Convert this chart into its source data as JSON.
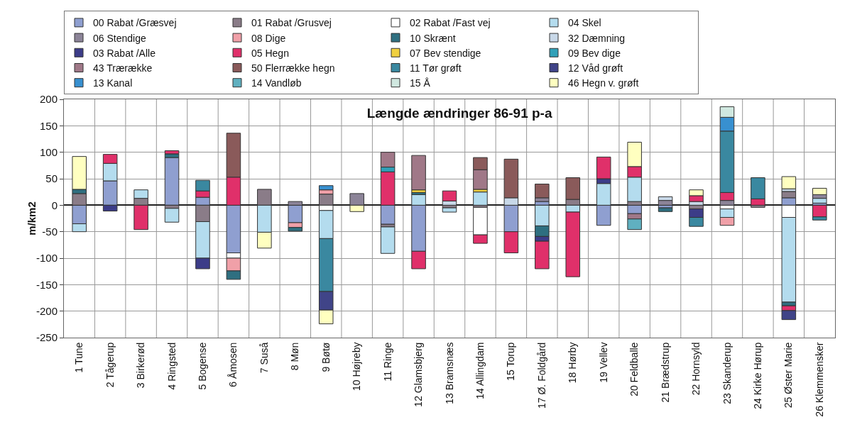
{
  "chart_data": {
    "type": "bar",
    "stacked": true,
    "title": "Længde ændringer 86-91 p-a",
    "ylabel": "m/km2",
    "categories": [
      "1 Tune",
      "2 Tågerup",
      "3 Birkerød",
      "4 Ringsted",
      "5 Bogense",
      "6 Åmosen",
      "7 Suså",
      "8 Møn",
      "9 Bøtø",
      "10 Højreby",
      "11 Ringe",
      "12 Glamsbjerg",
      "13 Bramsnæs",
      "14 Allingdam",
      "15 Torup",
      "17 Ø. Foldgård",
      "18 Hørby",
      "19 Vellev",
      "20 Feldballe",
      "21 Brædstrup",
      "22 Hornsyld",
      "23 Skanderup",
      "24 Kirke Hørup",
      "25 Øster Marie",
      "26 Klemmensker"
    ],
    "ylim": [
      -250,
      200
    ],
    "yticks": [
      -250,
      -200,
      -150,
      -100,
      -50,
      0,
      50,
      100,
      150,
      200
    ],
    "grid": true,
    "legend": "top",
    "series": [
      {
        "name": "00 Rabat /Græsvej",
        "color": "#8f9fd0",
        "values": [
          -35,
          46,
          null,
          90,
          15,
          -90,
          null,
          -33,
          null,
          null,
          -36,
          -87,
          null,
          null,
          -50,
          7,
          null,
          -38,
          -16,
          -5,
          null,
          null,
          null,
          14,
          4
        ]
      },
      {
        "name": "01 Rabat /Grusvej",
        "color": "#8a7c88",
        "values": [
          22,
          null,
          13,
          -6,
          -31,
          null,
          30,
          null,
          21,
          null,
          -5,
          null,
          -5,
          -4,
          null,
          null,
          11,
          null,
          7,
          null,
          -7,
          null,
          -4,
          12,
          null
        ]
      },
      {
        "name": "02 Rabat /Fast vej",
        "color": "#ffffff",
        "values": [
          null,
          null,
          null,
          null,
          null,
          -10,
          null,
          null,
          -10,
          null,
          null,
          null,
          null,
          -52,
          null,
          null,
          null,
          null,
          null,
          null,
          null,
          -7,
          null,
          -23,
          null
        ]
      },
      {
        "name": "04 Skel",
        "color": "#b4dcee",
        "values": [
          -15,
          33,
          16,
          -26,
          -69,
          null,
          -51,
          null,
          -53,
          null,
          -50,
          20,
          -8,
          25,
          null,
          -39,
          -13,
          41,
          46,
          null,
          null,
          -16,
          null,
          -160,
          9
        ]
      },
      {
        "name": "06 Stendige",
        "color": "#8c8498",
        "values": [
          null,
          null,
          null,
          null,
          null,
          null,
          null,
          7,
          null,
          22,
          null,
          null,
          null,
          null,
          null,
          7,
          null,
          null,
          null,
          9,
          null,
          9,
          null,
          null,
          7
        ]
      },
      {
        "name": "08 Dige",
        "color": "#f0a0a8",
        "values": [
          null,
          null,
          null,
          null,
          null,
          -24,
          null,
          -9,
          8,
          null,
          null,
          null,
          null,
          null,
          null,
          null,
          null,
          null,
          null,
          null,
          null,
          -15,
          null,
          null,
          null
        ]
      },
      {
        "name": "10 Skrænt",
        "color": "#2f6f80",
        "values": [
          8,
          null,
          null,
          7,
          null,
          -16,
          null,
          -7,
          null,
          null,
          null,
          4,
          null,
          null,
          null,
          -20,
          null,
          null,
          null,
          -7,
          null,
          null,
          null,
          -7,
          null
        ]
      },
      {
        "name": "32 Dæmning",
        "color": "#c8d8e8",
        "values": [
          null,
          null,
          null,
          null,
          null,
          null,
          null,
          null,
          null,
          null,
          null,
          null,
          8,
          null,
          14,
          null,
          null,
          null,
          null,
          7,
          7,
          null,
          null,
          5,
          null
        ]
      },
      {
        "name": "03 Rabat /Alle",
        "color": "#3c3c88",
        "values": [
          null,
          -11,
          null,
          null,
          -20,
          null,
          null,
          null,
          null,
          null,
          null,
          null,
          null,
          null,
          null,
          -9,
          null,
          9,
          null,
          null,
          -16,
          null,
          null,
          null,
          null
        ]
      },
      {
        "name": "05 Hegn",
        "color": "#e0306a",
        "values": [
          null,
          17,
          -46,
          6,
          12,
          53,
          null,
          null,
          null,
          null,
          63,
          -33,
          19,
          -16,
          -40,
          -52,
          -122,
          41,
          20,
          null,
          11,
          15,
          12,
          -9,
          -22
        ]
      },
      {
        "name": "07 Bev stendige",
        "color": "#f0d040",
        "values": [
          null,
          null,
          null,
          null,
          null,
          null,
          null,
          null,
          null,
          null,
          null,
          5,
          null,
          5,
          null,
          null,
          null,
          null,
          null,
          null,
          null,
          null,
          null,
          null,
          null
        ]
      },
      {
        "name": "09 Bev dige",
        "color": "#30a0b8",
        "values": [
          null,
          null,
          null,
          null,
          null,
          null,
          null,
          null,
          null,
          null,
          9,
          null,
          null,
          null,
          null,
          null,
          null,
          null,
          null,
          null,
          null,
          null,
          null,
          null,
          null
        ]
      },
      {
        "name": "43 Trærække",
        "color": "#a07888",
        "values": [
          null,
          null,
          null,
          null,
          null,
          null,
          null,
          null,
          null,
          null,
          28,
          65,
          null,
          37,
          null,
          null,
          null,
          null,
          -10,
          null,
          null,
          null,
          null,
          null,
          null
        ]
      },
      {
        "name": "50 Flerrække hegn",
        "color": "#8a5a5a",
        "values": [
          null,
          null,
          null,
          null,
          null,
          83,
          null,
          null,
          null,
          null,
          null,
          null,
          null,
          23,
          73,
          26,
          41,
          null,
          null,
          null,
          null,
          null,
          null,
          null,
          null
        ]
      },
      {
        "name": "11 Tør grøft",
        "color": "#3a88a0",
        "values": [
          null,
          null,
          null,
          null,
          20,
          null,
          null,
          null,
          -100,
          null,
          null,
          null,
          null,
          null,
          null,
          null,
          null,
          null,
          null,
          null,
          -17,
          116,
          40,
          null,
          -6
        ]
      },
      {
        "name": "12 Våd grøft",
        "color": "#404488",
        "values": [
          null,
          null,
          null,
          null,
          null,
          null,
          null,
          null,
          -35,
          null,
          null,
          null,
          null,
          null,
          null,
          null,
          null,
          null,
          null,
          null,
          null,
          null,
          null,
          -17,
          null
        ]
      },
      {
        "name": "13 Kanal",
        "color": "#3890d0",
        "values": [
          null,
          null,
          null,
          null,
          null,
          null,
          null,
          null,
          8,
          null,
          null,
          null,
          null,
          null,
          null,
          null,
          null,
          null,
          null,
          null,
          null,
          26,
          null,
          null,
          null
        ]
      },
      {
        "name": "14 Vandløb",
        "color": "#60b0c0",
        "values": [
          null,
          null,
          null,
          null,
          null,
          null,
          null,
          null,
          null,
          null,
          null,
          null,
          null,
          null,
          null,
          null,
          null,
          null,
          -20,
          null,
          null,
          null,
          null,
          null,
          null
        ]
      },
      {
        "name": "15 Å",
        "color": "#d0e8e0",
        "values": [
          null,
          null,
          null,
          null,
          null,
          null,
          null,
          null,
          null,
          null,
          null,
          null,
          null,
          null,
          null,
          null,
          null,
          null,
          null,
          null,
          null,
          20,
          null,
          null,
          null
        ]
      },
      {
        "name": "46 Hegn v. grøft",
        "color": "#ffffc0",
        "values": [
          62,
          null,
          null,
          null,
          null,
          null,
          -30,
          null,
          -26,
          -12,
          null,
          null,
          null,
          null,
          null,
          null,
          null,
          null,
          46,
          null,
          11,
          null,
          null,
          23,
          12
        ]
      }
    ]
  }
}
